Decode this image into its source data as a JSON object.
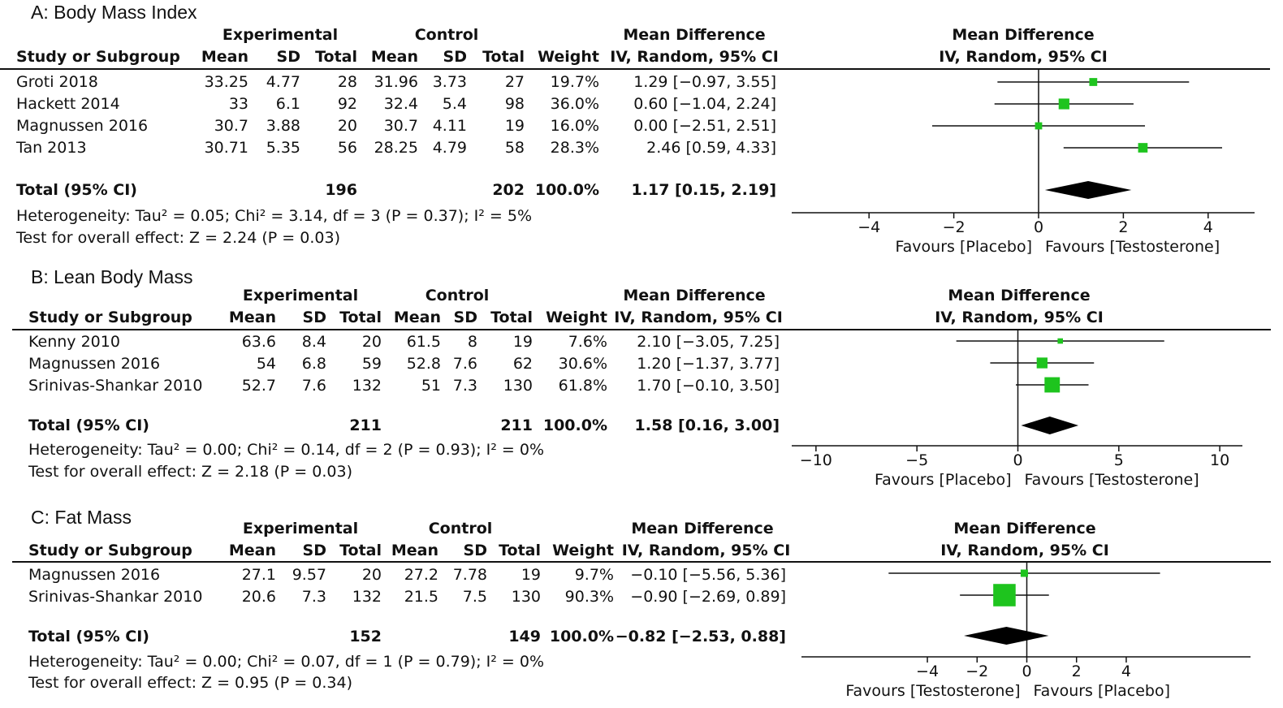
{
  "panels": [
    {
      "title": "A: Body Mass Index",
      "headers": {
        "group_experimental": "Experimental",
        "group_control": "Control",
        "md_top": "Mean Difference",
        "md_bottom": "IV, Random, 95% CI",
        "plot_top": "Mean Difference",
        "plot_bottom": "IV, Random, 95% CI",
        "study": "Study or Subgroup",
        "mean": "Mean",
        "sd": "SD",
        "total": "Total",
        "weight": "Weight"
      },
      "studies": [
        {
          "name": "Groti 2018",
          "e_mean": "33.25",
          "e_sd": "4.77",
          "e_total": "28",
          "c_mean": "31.96",
          "c_sd": "3.73",
          "c_total": "27",
          "weight": "19.7%",
          "ci": "1.29 [−0.97, 3.55]"
        },
        {
          "name": "Hackett 2014",
          "e_mean": "33",
          "e_sd": "6.1",
          "e_total": "92",
          "c_mean": "32.4",
          "c_sd": "5.4",
          "c_total": "98",
          "weight": "36.0%",
          "ci": "0.60 [−1.04, 2.24]"
        },
        {
          "name": "Magnussen 2016",
          "e_mean": "30.7",
          "e_sd": "3.88",
          "e_total": "20",
          "c_mean": "30.7",
          "c_sd": "4.11",
          "c_total": "19",
          "weight": "16.0%",
          "ci": "0.00 [−2.51, 2.51]"
        },
        {
          "name": "Tan 2013",
          "e_mean": "30.71",
          "e_sd": "5.35",
          "e_total": "56",
          "c_mean": "28.25",
          "c_sd": "4.79",
          "c_total": "58",
          "weight": "28.3%",
          "ci": "2.46 [0.59, 4.33]"
        }
      ],
      "total": {
        "label": "Total (95% CI)",
        "e_total": "196",
        "c_total": "202",
        "weight": "100.0%",
        "ci": "1.17 [0.15, 2.19]"
      },
      "heterogeneity": "Heterogeneity: Tau² = 0.05; Chi² = 3.14, df = 3 (P = 0.37); I² = 5%",
      "overall": "Test for overall effect: Z = 2.24 (P = 0.03)",
      "favours_left": "Favours [Placebo]",
      "favours_right": "Favours [Testosterone]"
    },
    {
      "title": "B: Lean Body Mass",
      "headers": {
        "group_experimental": "Experimental",
        "group_control": "Control",
        "md_top": "Mean Difference",
        "md_bottom": "IV, Random, 95% CI",
        "plot_top": "Mean Difference",
        "plot_bottom": "IV, Random, 95% CI",
        "study": "Study or Subgroup",
        "mean": "Mean",
        "sd": "SD",
        "total": "Total",
        "weight": "Weight"
      },
      "studies": [
        {
          "name": "Kenny 2010",
          "e_mean": "63.6",
          "e_sd": "8.4",
          "e_total": "20",
          "c_mean": "61.5",
          "c_sd": "8",
          "c_total": "19",
          "weight": "7.6%",
          "ci": "2.10 [−3.05, 7.25]"
        },
        {
          "name": "Magnussen 2016",
          "e_mean": "54",
          "e_sd": "6.8",
          "e_total": "59",
          "c_mean": "52.8",
          "c_sd": "7.6",
          "c_total": "62",
          "weight": "30.6%",
          "ci": "1.20 [−1.37, 3.77]"
        },
        {
          "name": "Srinivas-Shankar 2010",
          "e_mean": "52.7",
          "e_sd": "7.6",
          "e_total": "132",
          "c_mean": "51",
          "c_sd": "7.3",
          "c_total": "130",
          "weight": "61.8%",
          "ci": "1.70 [−0.10, 3.50]"
        }
      ],
      "total": {
        "label": "Total (95% CI)",
        "e_total": "211",
        "c_total": "211",
        "weight": "100.0%",
        "ci": "1.58 [0.16, 3.00]"
      },
      "heterogeneity": "Heterogeneity: Tau² = 0.00; Chi² = 0.14, df = 2 (P = 0.93); I² = 0%",
      "overall": "Test for overall effect: Z = 2.18 (P = 0.03)",
      "favours_left": "Favours [Placebo]",
      "favours_right": "Favours [Testosterone]"
    },
    {
      "title": "C: Fat Mass",
      "headers": {
        "group_experimental": "Experimental",
        "group_control": "Control",
        "md_top": "Mean Difference",
        "md_bottom": "IV, Random, 95% CI",
        "plot_top": "Mean Difference",
        "plot_bottom": "IV, Random, 95% CI",
        "study": "Study or Subgroup",
        "mean": "Mean",
        "sd": "SD",
        "total": "Total",
        "weight": "Weight"
      },
      "studies": [
        {
          "name": "Magnussen 2016",
          "e_mean": "27.1",
          "e_sd": "9.57",
          "e_total": "20",
          "c_mean": "27.2",
          "c_sd": "7.78",
          "c_total": "19",
          "weight": "9.7%",
          "ci": "−0.10 [−5.56, 5.36]"
        },
        {
          "name": "Srinivas-Shankar 2010",
          "e_mean": "20.6",
          "e_sd": "7.3",
          "e_total": "132",
          "c_mean": "21.5",
          "c_sd": "7.5",
          "c_total": "130",
          "weight": "90.3%",
          "ci": "−0.90 [−2.69, 0.89]"
        }
      ],
      "total": {
        "label": "Total (95% CI)",
        "e_total": "152",
        "c_total": "149",
        "weight": "100.0%",
        "ci": "−0.82 [−2.53, 0.88]"
      },
      "heterogeneity": "Heterogeneity: Tau² = 0.00; Chi² = 0.07, df = 1 (P = 0.79); I² = 0%",
      "overall": "Test for overall effect: Z = 0.95 (P = 0.34)",
      "favours_left": "Favours [Testosterone]",
      "favours_right": "Favours [Placebo]"
    }
  ],
  "colors": {
    "marker": "#1ec41e",
    "diamond": "#000000",
    "line": "#111111"
  },
  "chart_data": [
    {
      "type": "forest",
      "title": "A: Body Mass Index",
      "xlim": [
        -5,
        5
      ],
      "ticks": [
        -4,
        -2,
        0,
        2,
        4
      ],
      "tick_labels": [
        "−4",
        "−2",
        "0",
        "2",
        "4"
      ],
      "studies": [
        {
          "name": "Groti 2018",
          "md": 1.29,
          "lo": -0.97,
          "hi": 3.55,
          "weight": 19.7
        },
        {
          "name": "Hackett 2014",
          "md": 0.6,
          "lo": -1.04,
          "hi": 2.24,
          "weight": 36.0
        },
        {
          "name": "Magnussen 2016",
          "md": 0.0,
          "lo": -2.51,
          "hi": 2.51,
          "weight": 16.0
        },
        {
          "name": "Tan 2013",
          "md": 2.46,
          "lo": 0.59,
          "hi": 4.33,
          "weight": 28.3
        }
      ],
      "pooled": {
        "md": 1.17,
        "lo": 0.15,
        "hi": 2.19
      }
    },
    {
      "type": "forest",
      "title": "B: Lean Body Mass",
      "xlim": [
        -11,
        11
      ],
      "ticks": [
        -10,
        -5,
        0,
        5,
        10
      ],
      "tick_labels": [
        "−10",
        "−5",
        "0",
        "5",
        "10"
      ],
      "studies": [
        {
          "name": "Kenny 2010",
          "md": 2.1,
          "lo": -3.05,
          "hi": 7.25,
          "weight": 7.6
        },
        {
          "name": "Magnussen 2016",
          "md": 1.2,
          "lo": -1.37,
          "hi": 3.77,
          "weight": 30.6
        },
        {
          "name": "Srinivas-Shankar 2010",
          "md": 1.7,
          "lo": -0.1,
          "hi": 3.5,
          "weight": 61.8
        }
      ],
      "pooled": {
        "md": 1.58,
        "lo": 0.16,
        "hi": 3.0
      }
    },
    {
      "type": "forest",
      "title": "C: Fat Mass",
      "xlim": [
        -9,
        9
      ],
      "ticks": [
        -4,
        -2,
        0,
        2,
        4
      ],
      "tick_labels": [
        "−4",
        "−2",
        "0",
        "2",
        "4"
      ],
      "studies": [
        {
          "name": "Magnussen 2016",
          "md": -0.1,
          "lo": -5.56,
          "hi": 5.36,
          "weight": 9.7
        },
        {
          "name": "Srinivas-Shankar 2010",
          "md": -0.9,
          "lo": -2.69,
          "hi": 0.89,
          "weight": 90.3
        }
      ],
      "pooled": {
        "md": -0.82,
        "lo": -2.53,
        "hi": 0.88
      }
    }
  ]
}
